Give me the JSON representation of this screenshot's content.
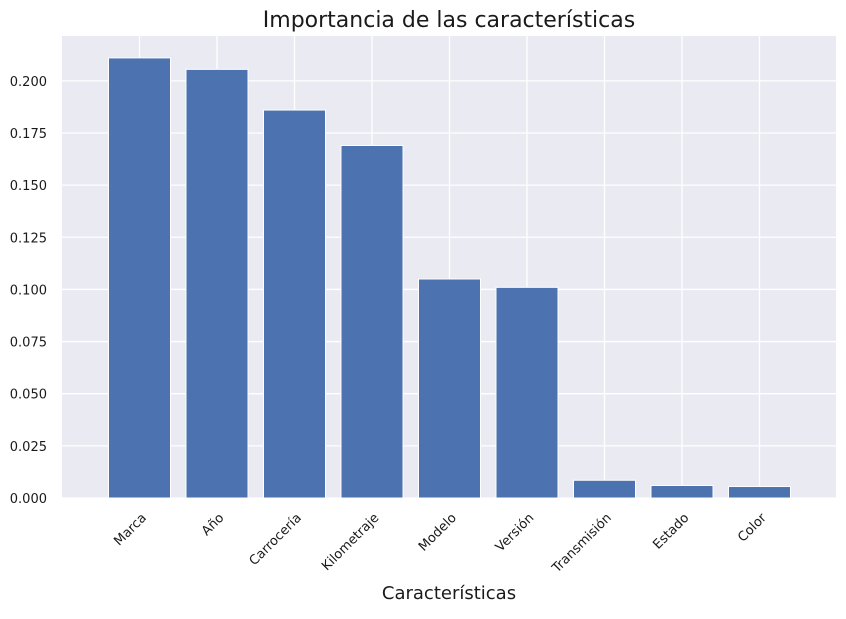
{
  "chart_data": {
    "type": "bar",
    "title": "Importancia de las características",
    "xlabel": "Características",
    "ylabel": "",
    "categories": [
      "Marca",
      "Año",
      "Carrocería",
      "Kilometraje",
      "Modelo",
      "Versión",
      "Transmisión",
      "Estado",
      "Color"
    ],
    "values": [
      0.211,
      0.2055,
      0.186,
      0.169,
      0.105,
      0.101,
      0.0085,
      0.006,
      0.0055
    ],
    "ylim": [
      0,
      0.2215
    ],
    "yticks": [
      0.0,
      0.025,
      0.05,
      0.075,
      0.1,
      0.125,
      0.15,
      0.175,
      0.2
    ],
    "ytick_labels": [
      "0.000",
      "0.025",
      "0.050",
      "0.075",
      "0.100",
      "0.125",
      "0.150",
      "0.175",
      "0.200"
    ],
    "grid": true,
    "legend": "none",
    "colors": {
      "bar": "#4c72b0",
      "plot_background": "#eaeaf2",
      "grid": "#ffffff",
      "page_background": "#ffffff"
    }
  }
}
